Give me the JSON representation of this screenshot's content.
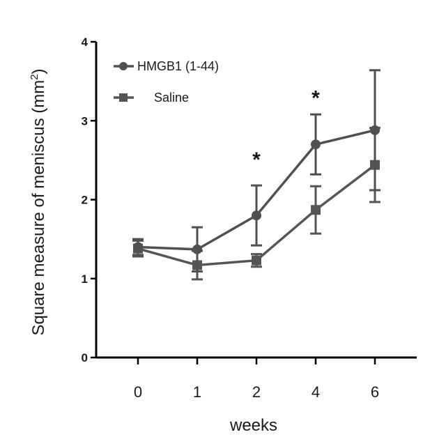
{
  "chart_data": {
    "type": "line",
    "title": "",
    "xlabel": "weeks",
    "ylabel": "Square measure of meniscus (mm²)",
    "ylabel_main": "Square measure of meniscus (mm",
    "ylabel_sup": "2",
    "ylabel_close": ")",
    "categories": [
      "0",
      "1",
      "2",
      "4",
      "6"
    ],
    "ylim": [
      0,
      4
    ],
    "yticks": [
      "0",
      "1",
      "2",
      "3",
      "4"
    ],
    "grid": false,
    "legend_position": "top-left",
    "series": [
      {
        "name": "HMGB1 (1-44)",
        "marker": "circle",
        "color": "#505050",
        "values": [
          1.4,
          1.37,
          1.8,
          2.7,
          2.88
        ],
        "errors": [
          0.1,
          0.28,
          0.38,
          0.38,
          0.76
        ]
      },
      {
        "name": "Saline",
        "marker": "square",
        "color": "#555555",
        "values": [
          1.38,
          1.17,
          1.23,
          1.87,
          2.44
        ],
        "errors": [
          0.1,
          0.18,
          0.08,
          0.3,
          0.47
        ]
      }
    ],
    "annotations": [
      {
        "text": "*",
        "category": "2",
        "y": 2.58
      },
      {
        "text": "*",
        "category": "4",
        "y": 3.36
      }
    ]
  }
}
